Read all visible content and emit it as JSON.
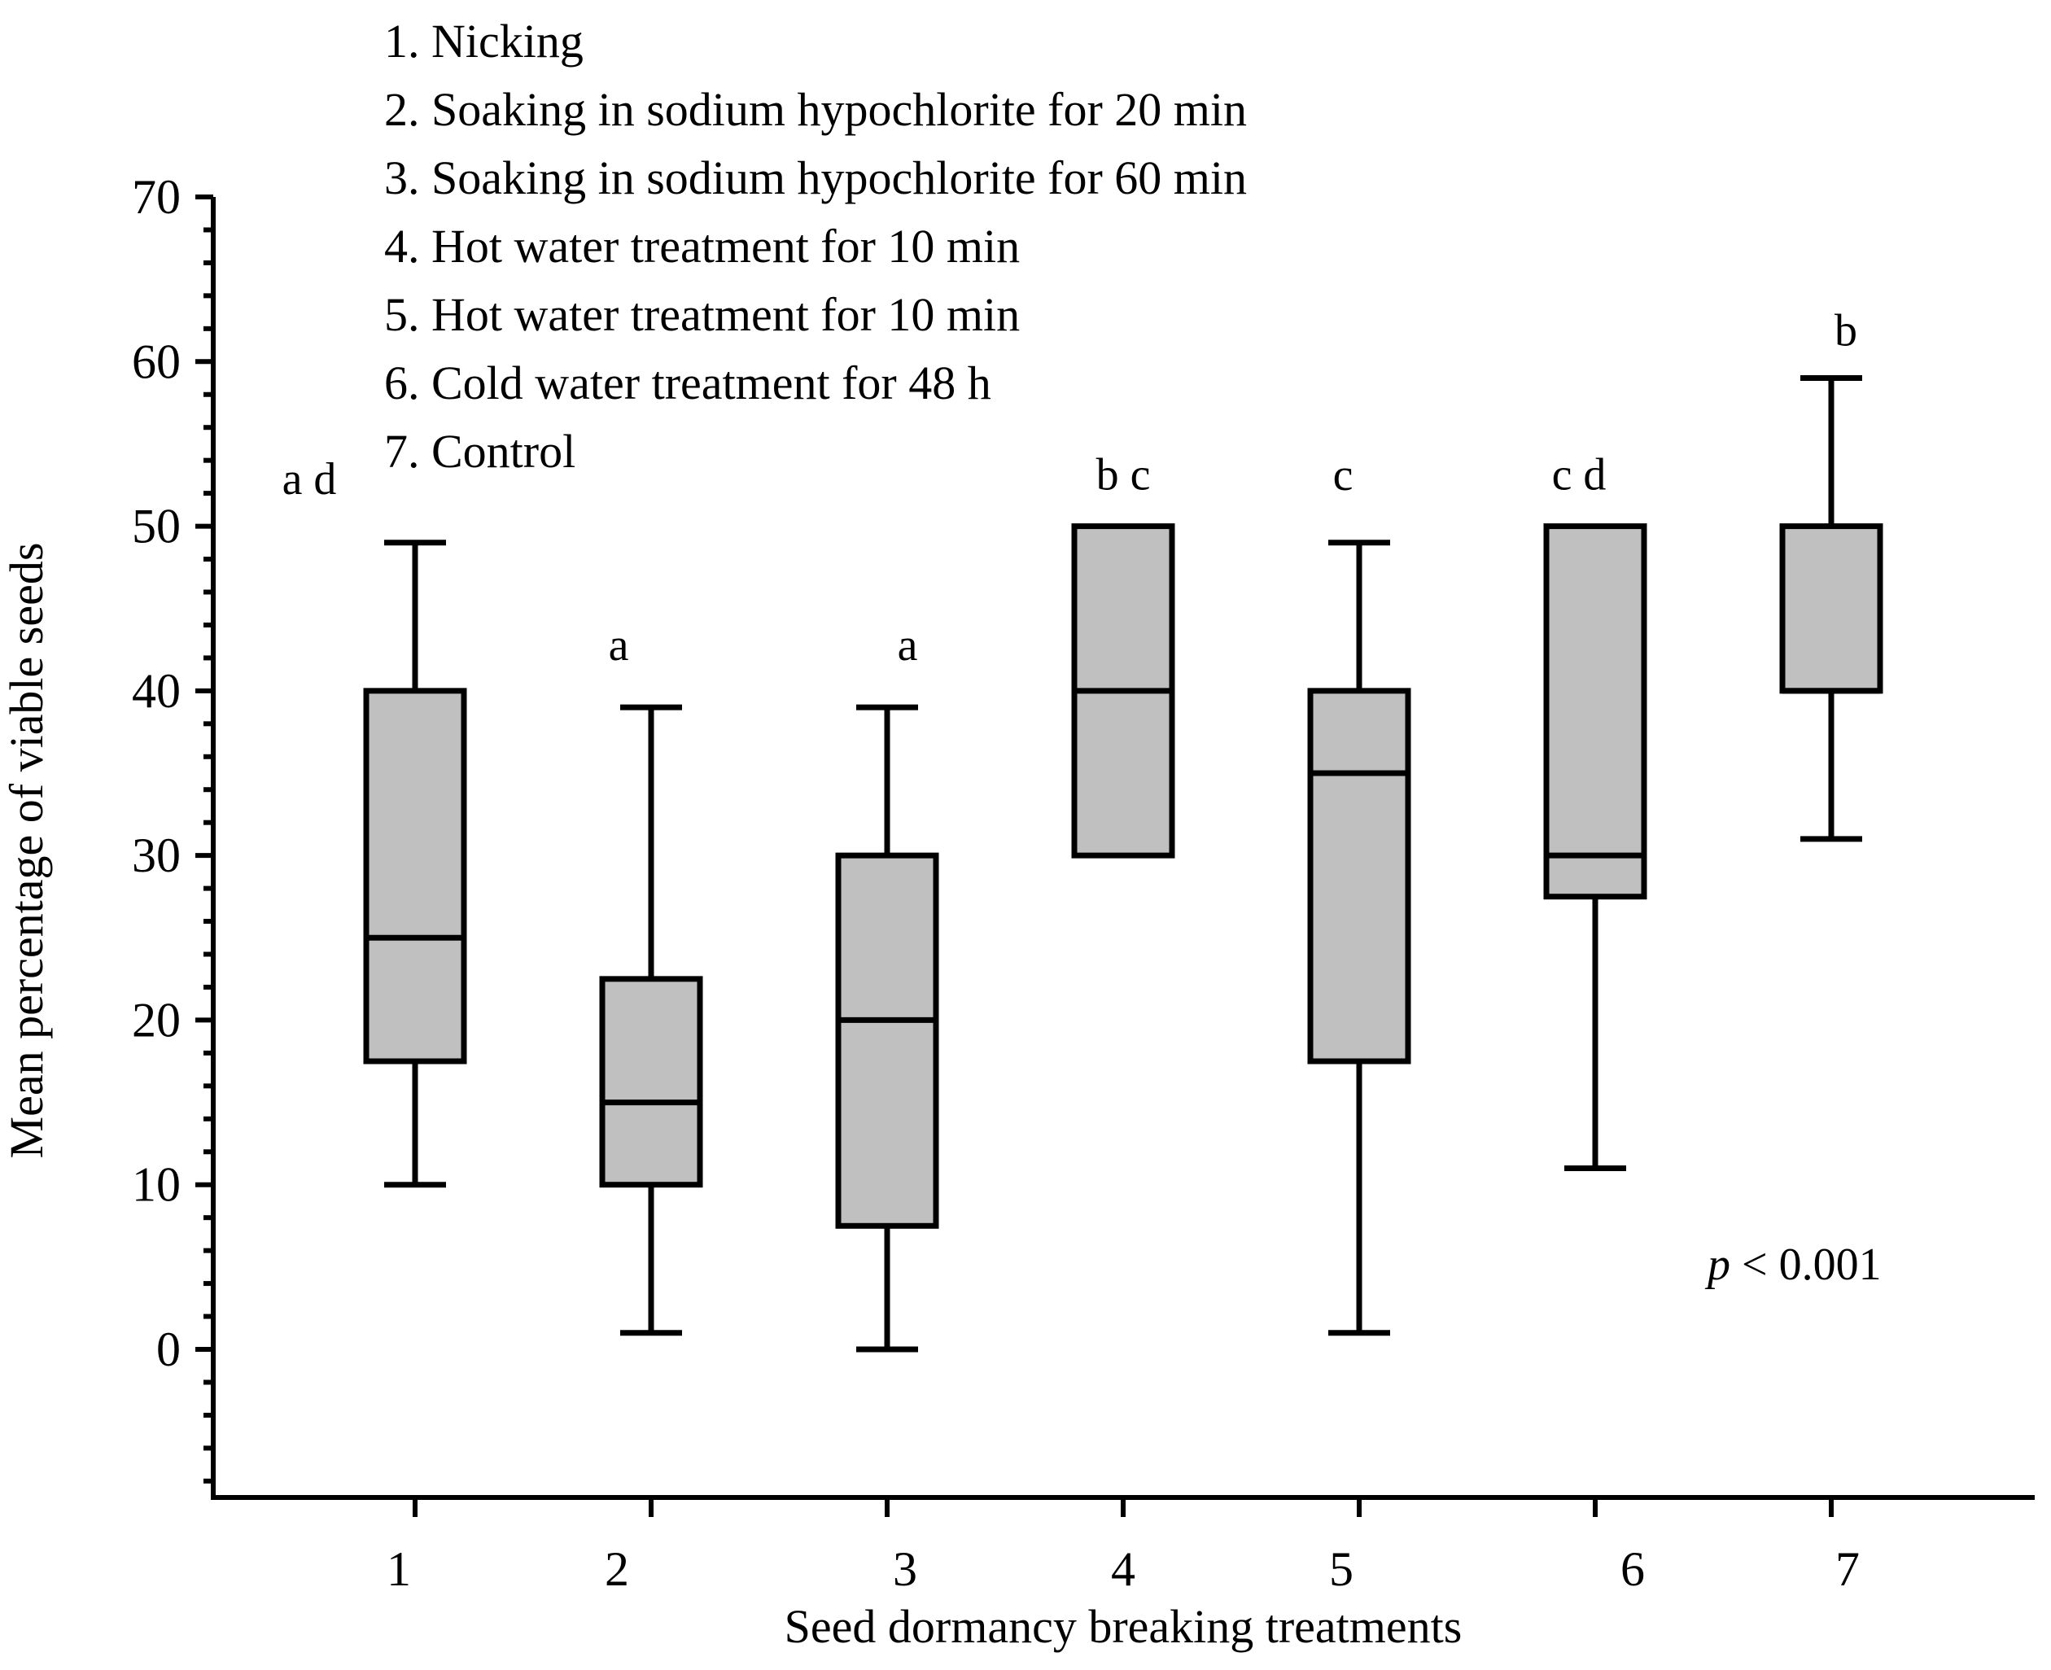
{
  "chart_data": {
    "type": "box",
    "xlabel": "Seed dormancy breaking treatments",
    "ylabel": "Mean percentage of viable seeds",
    "ylim": [
      -9,
      70
    ],
    "yticks": [
      0,
      10,
      20,
      30,
      40,
      50,
      60,
      70
    ],
    "categories": [
      "1",
      "2",
      "3",
      "4",
      "5",
      "6",
      "7"
    ],
    "boxes": [
      {
        "category": "1",
        "min": 10,
        "q1": 17.5,
        "median": 25,
        "q3": 40,
        "max": 49,
        "group_label": "a d"
      },
      {
        "category": "2",
        "min": 1,
        "q1": 10,
        "median": 15,
        "q3": 22.5,
        "max": 39,
        "group_label": "a"
      },
      {
        "category": "3",
        "min": 0,
        "q1": 7.5,
        "median": 20,
        "q3": 30,
        "max": 39,
        "group_label": "a"
      },
      {
        "category": "4",
        "min": 30,
        "q1": 30,
        "median": 40,
        "q3": 50,
        "max": 50,
        "group_label": "b c"
      },
      {
        "category": "5",
        "min": 1,
        "q1": 17.5,
        "median": 35,
        "q3": 40,
        "max": 49,
        "group_label": "c"
      },
      {
        "category": "6",
        "min": 11,
        "q1": 27.5,
        "median": 30,
        "q3": 50,
        "max": 50,
        "group_label": "c d"
      },
      {
        "category": "7",
        "min": 31,
        "q1": 40,
        "median": 40,
        "q3": 50,
        "max": 59,
        "group_label": "b"
      }
    ],
    "legend": [
      "1. Nicking",
      "2. Soaking in sodium hypochlorite for 20 min",
      "3. Soaking in sodium hypochlorite for 60 min",
      "4. Hot water treatment for 10 min",
      "5. Hot water treatment for 10 min",
      "6. Cold water treatment for 48 h",
      "7. Control"
    ],
    "annotation": {
      "p_symbol": "p",
      "p_text": " < 0.001"
    }
  },
  "colors": {
    "box_fill": "#c0c0c0",
    "stroke": "#000000",
    "background": "#ffffff"
  }
}
